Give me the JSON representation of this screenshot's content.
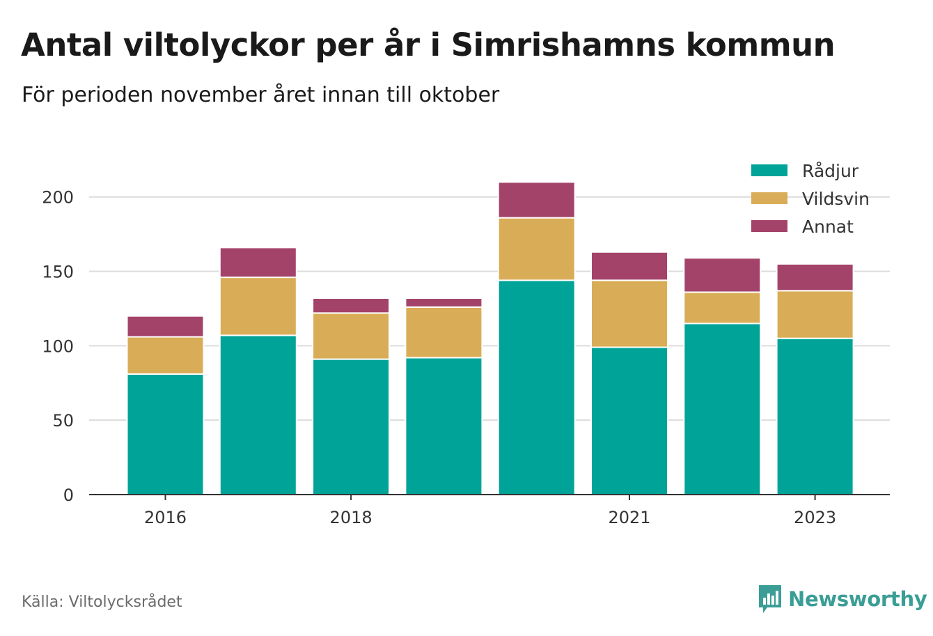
{
  "title": "Antal viltolyckor per år i Simrishamns kommun",
  "subtitle": "För perioden november året innan till oktober",
  "source": "Källa: Viltolycksrådet",
  "brand": {
    "name": "Newsworthy",
    "icon": "newsworthy-logo-icon",
    "color": "#3a9e96"
  },
  "chart_data": {
    "type": "bar",
    "stacked": true,
    "categories": [
      "2016",
      "2017",
      "2018",
      "2019",
      "2020",
      "2021",
      "2022",
      "2023"
    ],
    "x_tick_labels": [
      "2016",
      "",
      "2018",
      "",
      "",
      "2021",
      "",
      "2023"
    ],
    "series": [
      {
        "name": "Rådjur",
        "color": "#00a398",
        "values": [
          81,
          107,
          91,
          92,
          144,
          99,
          115,
          105
        ]
      },
      {
        "name": "Vildsvin",
        "color": "#d9ad57",
        "values": [
          25,
          39,
          31,
          34,
          42,
          45,
          21,
          32
        ]
      },
      {
        "name": "Annat",
        "color": "#a4436a",
        "values": [
          14,
          20,
          10,
          6,
          24,
          19,
          23,
          18
        ]
      }
    ],
    "ylim": [
      0,
      220
    ],
    "yticks": [
      0,
      50,
      100,
      150,
      200
    ],
    "grid": true,
    "legend": "top-right"
  }
}
